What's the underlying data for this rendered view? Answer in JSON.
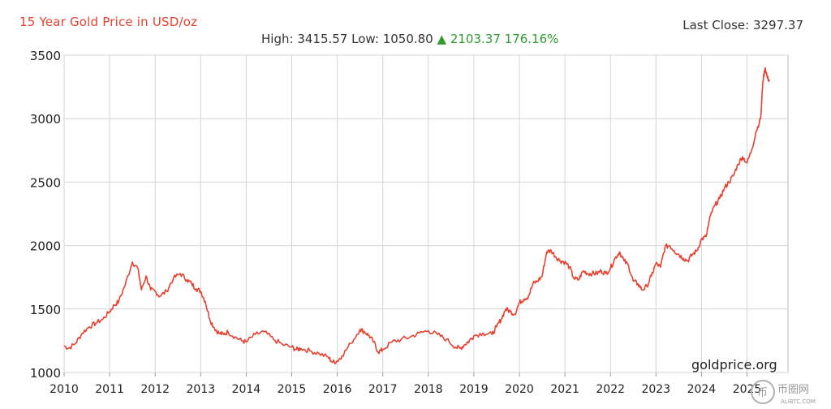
{
  "header": {
    "title": "15 Year Gold Price in USD/oz",
    "last_close_label": "Last Close:",
    "last_close_value": "3297.37",
    "high_label": "High:",
    "high_value": "3415.57",
    "low_label": "Low:",
    "low_value": "1050.80",
    "change_arrow": "▲",
    "change_value": "2103.37",
    "change_percent": "176.16%"
  },
  "credit": "goldprice.org",
  "watermark": {
    "glyph": "币",
    "text": "币圈网",
    "url": "ALIBTC.COM"
  },
  "colors": {
    "line": "#e8412f",
    "title": "#e8412f",
    "up": "#2f9b2f",
    "grid": "#d4d4d4"
  },
  "chart_data": {
    "type": "line",
    "title": "15 Year Gold Price in USD/oz",
    "xlabel": "",
    "ylabel": "",
    "xlim": [
      2010,
      2025.9
    ],
    "ylim": [
      1000,
      3500
    ],
    "x_ticks": [
      "2010",
      "2011",
      "2012",
      "2013",
      "2014",
      "2015",
      "2016",
      "2017",
      "2018",
      "2019",
      "2020",
      "2021",
      "2022",
      "2023",
      "2024",
      "2025"
    ],
    "y_ticks": [
      1000,
      1500,
      2000,
      2500,
      3000,
      3500
    ],
    "grid": true,
    "series": [
      {
        "x": [
          2010.0,
          2010.1,
          2010.25,
          2010.4,
          2010.55,
          2010.7,
          2010.85,
          2011.0,
          2011.1,
          2011.2,
          2011.35,
          2011.5,
          2011.62,
          2011.7,
          2011.8,
          2011.9,
          2012.0,
          2012.1,
          2012.25,
          2012.4,
          2012.55,
          2012.7,
          2012.8,
          2012.9,
          2013.0,
          2013.1,
          2013.2,
          2013.3,
          2013.4,
          2013.5,
          2013.6,
          2013.75,
          2013.9,
          2014.0,
          2014.2,
          2014.4,
          2014.6,
          2014.8,
          2015.0,
          2015.1,
          2015.2,
          2015.4,
          2015.6,
          2015.8,
          2015.9,
          2016.0,
          2016.1,
          2016.3,
          2016.5,
          2016.6,
          2016.7,
          2016.8,
          2016.9,
          2017.0,
          2017.2,
          2017.4,
          2017.6,
          2017.8,
          2018.0,
          2018.2,
          2018.4,
          2018.6,
          2018.7,
          2018.8,
          2018.9,
          2019.0,
          2019.2,
          2019.4,
          2019.5,
          2019.6,
          2019.7,
          2019.8,
          2019.9,
          2020.0,
          2020.1,
          2020.2,
          2020.3,
          2020.4,
          2020.5,
          2020.6,
          2020.7,
          2020.8,
          2020.9,
          2021.0,
          2021.1,
          2021.2,
          2021.3,
          2021.4,
          2021.5,
          2021.6,
          2021.7,
          2021.8,
          2021.9,
          2022.0,
          2022.1,
          2022.2,
          2022.3,
          2022.4,
          2022.5,
          2022.6,
          2022.7,
          2022.8,
          2022.9,
          2023.0,
          2023.1,
          2023.2,
          2023.3,
          2023.4,
          2023.5,
          2023.6,
          2023.7,
          2023.8,
          2023.9,
          2024.0,
          2024.1,
          2024.2,
          2024.3,
          2024.4,
          2024.5,
          2024.6,
          2024.7,
          2024.8,
          2024.9,
          2025.0,
          2025.1,
          2025.2,
          2025.3,
          2025.35,
          2025.4,
          2025.45,
          2025.5
        ],
        "values": [
          1210,
          1190,
          1230,
          1310,
          1360,
          1390,
          1420,
          1480,
          1530,
          1560,
          1700,
          1870,
          1820,
          1650,
          1760,
          1650,
          1640,
          1600,
          1640,
          1740,
          1780,
          1730,
          1700,
          1660,
          1640,
          1560,
          1420,
          1350,
          1310,
          1300,
          1320,
          1280,
          1250,
          1240,
          1300,
          1320,
          1260,
          1220,
          1200,
          1180,
          1190,
          1170,
          1150,
          1120,
          1080,
          1090,
          1130,
          1230,
          1340,
          1320,
          1290,
          1240,
          1160,
          1180,
          1240,
          1260,
          1280,
          1310,
          1330,
          1300,
          1260,
          1200,
          1190,
          1220,
          1250,
          1290,
          1310,
          1300,
          1360,
          1420,
          1500,
          1480,
          1460,
          1550,
          1580,
          1600,
          1700,
          1720,
          1760,
          1950,
          1960,
          1910,
          1880,
          1870,
          1830,
          1740,
          1730,
          1800,
          1780,
          1780,
          1780,
          1800,
          1780,
          1820,
          1900,
          1950,
          1880,
          1840,
          1720,
          1700,
          1650,
          1680,
          1760,
          1860,
          1830,
          1990,
          2000,
          1960,
          1930,
          1900,
          1880,
          1930,
          1960,
          2050,
          2070,
          2240,
          2320,
          2370,
          2450,
          2500,
          2550,
          2640,
          2700,
          2650,
          2750,
          2900,
          3000,
          3300,
          3400,
          3320,
          3297
        ]
      }
    ]
  }
}
